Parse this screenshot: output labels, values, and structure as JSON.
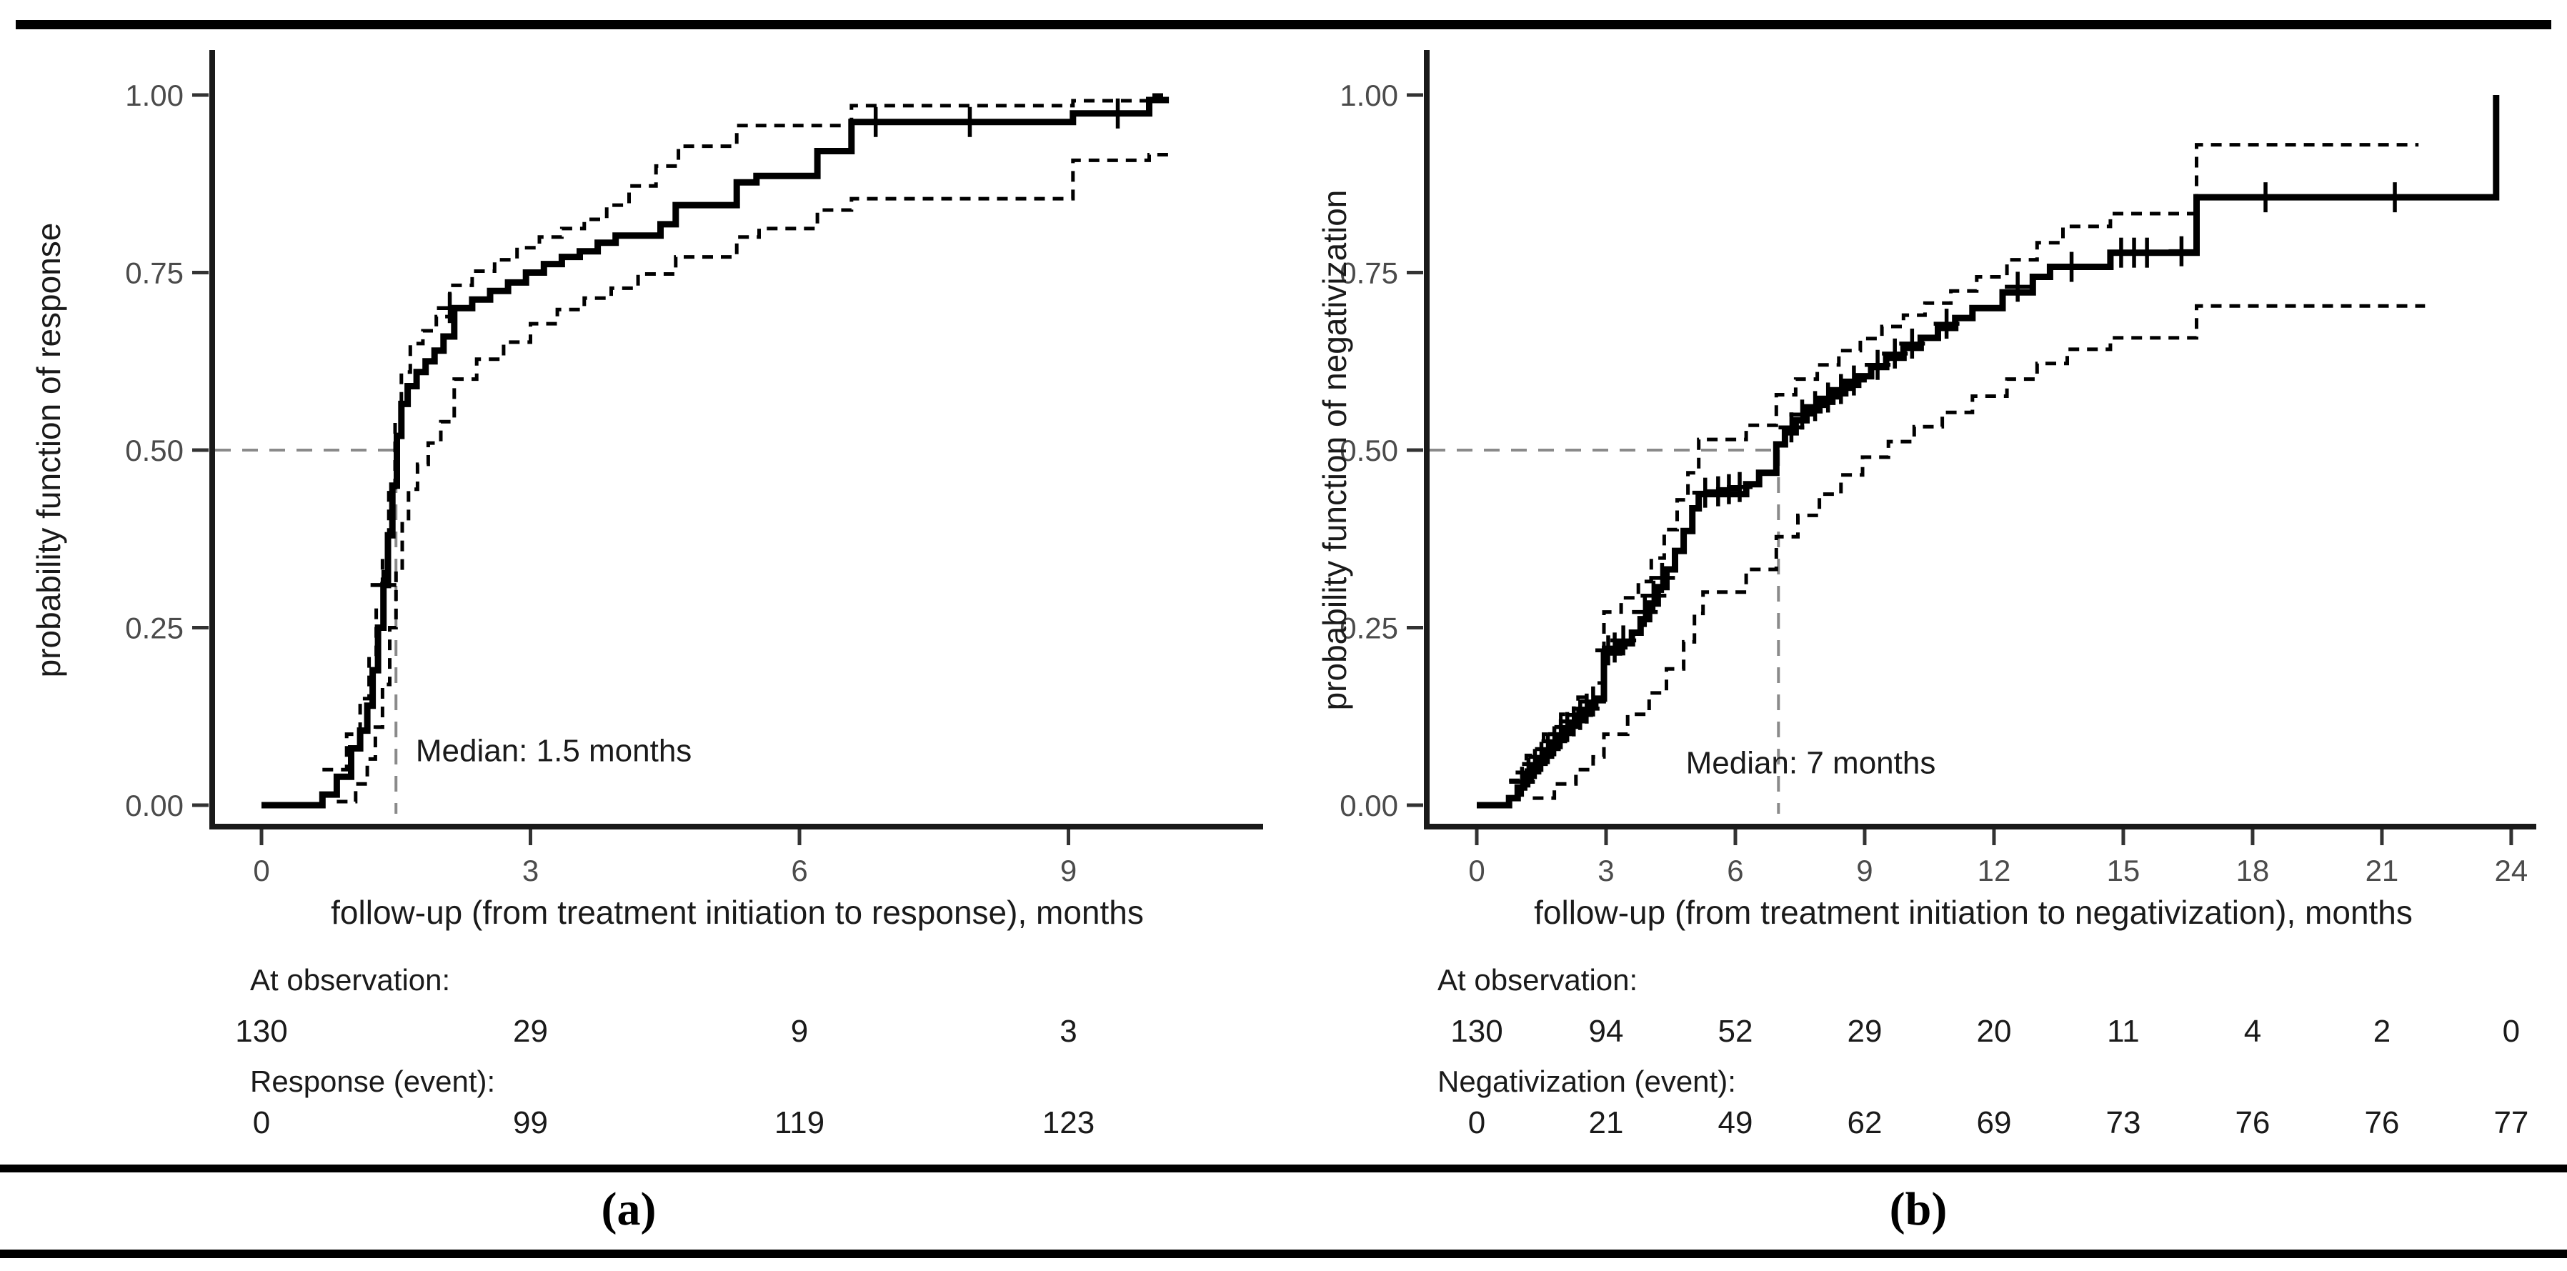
{
  "figure": {
    "caption_a": "(a)",
    "caption_b": "(b)"
  },
  "colors": {
    "curve": "#000000",
    "ci_curve": "#000000",
    "median_line": "#8a8a8a",
    "axis_line": "#1a1a1a",
    "tick_label": "#4b4b4b",
    "text": "#1a1a1a"
  },
  "chart_data": [
    {
      "type": "line",
      "panel": "a",
      "subtype": "kaplan-meier-step",
      "title": "",
      "xlabel": "follow-up (from treatment initiation to response), months",
      "ylabel": "probability function of response",
      "xlim": [
        -0.55,
        11.2
      ],
      "ylim": [
        0,
        1
      ],
      "xticks": [
        0,
        3,
        6,
        9
      ],
      "ytick_labels": [
        "0.00",
        "0.25",
        "0.50",
        "0.75",
        "1.00"
      ],
      "yticks": [
        0,
        0.25,
        0.5,
        0.75,
        1
      ],
      "grid": false,
      "legend": "none",
      "median_annotation": {
        "x": 1.5,
        "y": 0.5,
        "label": "Median: 1.5 months",
        "label_x": 1.72,
        "label_y": 0.062
      },
      "series": [
        {
          "name": "estimate",
          "style": "solid",
          "points": [
            [
              0,
              0
            ],
            [
              0.68,
              0.015
            ],
            [
              0.84,
              0.04
            ],
            [
              1.0,
              0.08
            ],
            [
              1.1,
              0.105
            ],
            [
              1.18,
              0.14
            ],
            [
              1.24,
              0.19
            ],
            [
              1.3,
              0.25
            ],
            [
              1.36,
              0.31
            ],
            [
              1.41,
              0.38
            ],
            [
              1.46,
              0.45
            ],
            [
              1.51,
              0.52
            ],
            [
              1.56,
              0.565
            ],
            [
              1.63,
              0.59
            ],
            [
              1.73,
              0.61
            ],
            [
              1.83,
              0.625
            ],
            [
              1.93,
              0.64
            ],
            [
              2.03,
              0.66
            ],
            [
              2.15,
              0.7
            ],
            [
              2.35,
              0.712
            ],
            [
              2.55,
              0.724
            ],
            [
              2.75,
              0.736
            ],
            [
              2.95,
              0.75
            ],
            [
              3.15,
              0.762
            ],
            [
              3.35,
              0.772
            ],
            [
              3.55,
              0.78
            ],
            [
              3.75,
              0.792
            ],
            [
              3.95,
              0.802
            ],
            [
              4.45,
              0.818
            ],
            [
              4.62,
              0.845
            ],
            [
              5.3,
              0.877
            ],
            [
              5.52,
              0.886
            ],
            [
              6.2,
              0.921
            ],
            [
              6.58,
              0.962
            ],
            [
              9.05,
              0.974
            ],
            [
              9.9,
              0.993
            ],
            [
              10.12,
              0.993
            ]
          ]
        },
        {
          "name": "upper_95ci",
          "style": "dashed",
          "points": [
            [
              0.68,
              0.05
            ],
            [
              0.95,
              0.1
            ],
            [
              1.1,
              0.15
            ],
            [
              1.2,
              0.21
            ],
            [
              1.28,
              0.28
            ],
            [
              1.35,
              0.35
            ],
            [
              1.42,
              0.44
            ],
            [
              1.49,
              0.54
            ],
            [
              1.56,
              0.61
            ],
            [
              1.66,
              0.65
            ],
            [
              1.8,
              0.668
            ],
            [
              1.95,
              0.688
            ],
            [
              2.1,
              0.732
            ],
            [
              2.35,
              0.752
            ],
            [
              2.6,
              0.768
            ],
            [
              2.85,
              0.785
            ],
            [
              3.1,
              0.8
            ],
            [
              3.35,
              0.812
            ],
            [
              3.6,
              0.825
            ],
            [
              3.85,
              0.845
            ],
            [
              4.1,
              0.872
            ],
            [
              4.4,
              0.9
            ],
            [
              4.65,
              0.928
            ],
            [
              5.3,
              0.957
            ],
            [
              6.58,
              0.985
            ],
            [
              9.05,
              0.992
            ],
            [
              9.9,
              1.0
            ],
            [
              10.12,
              1.0
            ]
          ]
        },
        {
          "name": "lower_95ci",
          "style": "dashed",
          "points": [
            [
              0.84,
              0.005
            ],
            [
              1.05,
              0.03
            ],
            [
              1.18,
              0.065
            ],
            [
              1.27,
              0.11
            ],
            [
              1.35,
              0.17
            ],
            [
              1.43,
              0.25
            ],
            [
              1.5,
              0.33
            ],
            [
              1.57,
              0.4
            ],
            [
              1.64,
              0.445
            ],
            [
              1.74,
              0.48
            ],
            [
              1.86,
              0.51
            ],
            [
              2.0,
              0.54
            ],
            [
              2.15,
              0.6
            ],
            [
              2.4,
              0.628
            ],
            [
              2.7,
              0.652
            ],
            [
              3.0,
              0.678
            ],
            [
              3.3,
              0.698
            ],
            [
              3.6,
              0.714
            ],
            [
              3.9,
              0.728
            ],
            [
              4.2,
              0.748
            ],
            [
              4.62,
              0.772
            ],
            [
              5.3,
              0.8
            ],
            [
              5.55,
              0.812
            ],
            [
              6.2,
              0.838
            ],
            [
              6.58,
              0.854
            ],
            [
              9.05,
              0.908
            ],
            [
              9.9,
              0.916
            ],
            [
              10.12,
              0.916
            ]
          ]
        }
      ],
      "censor_marks": [
        [
          1.36,
          0.31
        ],
        [
          2.1,
          0.7
        ],
        [
          6.85,
          0.962
        ],
        [
          7.9,
          0.962
        ],
        [
          9.55,
          0.974
        ]
      ],
      "risk_table": [
        {
          "label": "At observation:",
          "values": [
            "130",
            "29",
            "9",
            "3"
          ]
        },
        {
          "label": "Response (event):",
          "values": [
            "0",
            "99",
            "119",
            "123"
          ]
        }
      ]
    },
    {
      "type": "line",
      "panel": "b",
      "subtype": "kaplan-meier-step",
      "title": "",
      "xlabel": "follow-up (from treatment initiation to negativization), months",
      "ylabel": "probability function of negativization",
      "xlim": [
        -1.2,
        24.6
      ],
      "ylim": [
        0,
        1
      ],
      "xticks": [
        0,
        3,
        6,
        9,
        12,
        15,
        18,
        21,
        24
      ],
      "ytick_labels": [
        "0.00",
        "0.25",
        "0.50",
        "0.75",
        "1.00"
      ],
      "yticks": [
        0,
        0.25,
        0.5,
        0.75,
        1
      ],
      "grid": false,
      "legend": "none",
      "median_annotation": {
        "x": 7,
        "y": 0.5,
        "label": "Median: 7 months",
        "label_x": 4.85,
        "label_y": 0.045
      },
      "series": [
        {
          "name": "estimate",
          "style": "solid",
          "points": [
            [
              0,
              0
            ],
            [
              0.75,
              0.01
            ],
            [
              0.95,
              0.025
            ],
            [
              1.1,
              0.04
            ],
            [
              1.25,
              0.052
            ],
            [
              1.4,
              0.063
            ],
            [
              1.55,
              0.073
            ],
            [
              1.7,
              0.084
            ],
            [
              1.85,
              0.094
            ],
            [
              2.0,
              0.104
            ],
            [
              2.15,
              0.113
            ],
            [
              2.3,
              0.122
            ],
            [
              2.45,
              0.131
            ],
            [
              2.6,
              0.14
            ],
            [
              2.75,
              0.15
            ],
            [
              2.95,
              0.215
            ],
            [
              3.3,
              0.228
            ],
            [
              3.6,
              0.243
            ],
            [
              3.8,
              0.262
            ],
            [
              4.0,
              0.284
            ],
            [
              4.2,
              0.307
            ],
            [
              4.4,
              0.332
            ],
            [
              4.6,
              0.358
            ],
            [
              4.8,
              0.386
            ],
            [
              5.0,
              0.418
            ],
            [
              5.15,
              0.438
            ],
            [
              6.25,
              0.452
            ],
            [
              6.55,
              0.468
            ],
            [
              6.95,
              0.508
            ],
            [
              7.15,
              0.525
            ],
            [
              7.4,
              0.542
            ],
            [
              7.65,
              0.556
            ],
            [
              7.95,
              0.568
            ],
            [
              8.25,
              0.58
            ],
            [
              8.55,
              0.592
            ],
            [
              8.85,
              0.604
            ],
            [
              9.15,
              0.617
            ],
            [
              9.5,
              0.63
            ],
            [
              9.9,
              0.644
            ],
            [
              10.3,
              0.658
            ],
            [
              10.7,
              0.672
            ],
            [
              11.1,
              0.686
            ],
            [
              11.5,
              0.7
            ],
            [
              12.2,
              0.722
            ],
            [
              12.9,
              0.744
            ],
            [
              13.3,
              0.758
            ],
            [
              14.7,
              0.778
            ],
            [
              16.7,
              0.856
            ],
            [
              23.65,
              1.0
            ]
          ]
        },
        {
          "name": "upper_95ci",
          "style": "dashed",
          "points": [
            [
              0.75,
              0.035
            ],
            [
              1.15,
              0.07
            ],
            [
              1.55,
              0.1
            ],
            [
              1.95,
              0.128
            ],
            [
              2.35,
              0.152
            ],
            [
              2.7,
              0.172
            ],
            [
              2.95,
              0.272
            ],
            [
              3.35,
              0.292
            ],
            [
              3.75,
              0.315
            ],
            [
              4.05,
              0.348
            ],
            [
              4.35,
              0.388
            ],
            [
              4.65,
              0.43
            ],
            [
              4.9,
              0.468
            ],
            [
              5.15,
              0.515
            ],
            [
              6.25,
              0.535
            ],
            [
              6.95,
              0.578
            ],
            [
              7.4,
              0.6
            ],
            [
              7.9,
              0.62
            ],
            [
              8.4,
              0.64
            ],
            [
              8.9,
              0.657
            ],
            [
              9.4,
              0.674
            ],
            [
              9.9,
              0.69
            ],
            [
              10.4,
              0.707
            ],
            [
              11.0,
              0.724
            ],
            [
              11.6,
              0.744
            ],
            [
              12.3,
              0.768
            ],
            [
              13.0,
              0.792
            ],
            [
              13.6,
              0.815
            ],
            [
              14.7,
              0.833
            ],
            [
              16.7,
              0.93
            ],
            [
              21.85,
              0.93
            ]
          ]
        },
        {
          "name": "lower_95ci",
          "style": "dashed",
          "points": [
            [
              1.3,
              0.01
            ],
            [
              1.8,
              0.03
            ],
            [
              2.3,
              0.05
            ],
            [
              2.7,
              0.068
            ],
            [
              2.95,
              0.1
            ],
            [
              3.5,
              0.128
            ],
            [
              4.0,
              0.158
            ],
            [
              4.4,
              0.192
            ],
            [
              4.8,
              0.23
            ],
            [
              5.05,
              0.27
            ],
            [
              5.25,
              0.3
            ],
            [
              6.25,
              0.332
            ],
            [
              6.95,
              0.378
            ],
            [
              7.45,
              0.408
            ],
            [
              7.95,
              0.438
            ],
            [
              8.45,
              0.465
            ],
            [
              8.95,
              0.49
            ],
            [
              9.55,
              0.512
            ],
            [
              10.15,
              0.533
            ],
            [
              10.8,
              0.553
            ],
            [
              11.5,
              0.576
            ],
            [
              12.3,
              0.6
            ],
            [
              13.0,
              0.622
            ],
            [
              13.7,
              0.642
            ],
            [
              14.7,
              0.658
            ],
            [
              16.7,
              0.703
            ],
            [
              22.0,
              0.703
            ]
          ]
        }
      ],
      "censor_marks": [
        [
          1.05,
          0.033
        ],
        [
          1.2,
          0.046
        ],
        [
          1.35,
          0.058
        ],
        [
          1.5,
          0.068
        ],
        [
          1.65,
          0.079
        ],
        [
          1.8,
          0.09
        ],
        [
          1.95,
          0.1
        ],
        [
          2.1,
          0.11
        ],
        [
          2.25,
          0.118
        ],
        [
          2.4,
          0.127
        ],
        [
          2.55,
          0.136
        ],
        [
          2.7,
          0.146
        ],
        [
          3.05,
          0.218
        ],
        [
          3.2,
          0.222
        ],
        [
          3.4,
          0.232
        ],
        [
          3.9,
          0.272
        ],
        [
          4.1,
          0.295
        ],
        [
          4.3,
          0.32
        ],
        [
          5.3,
          0.44
        ],
        [
          5.6,
          0.442
        ],
        [
          5.85,
          0.445
        ],
        [
          6.1,
          0.448
        ],
        [
          7.3,
          0.532
        ],
        [
          7.55,
          0.55
        ],
        [
          7.85,
          0.562
        ],
        [
          8.15,
          0.574
        ],
        [
          8.45,
          0.586
        ],
        [
          8.75,
          0.598
        ],
        [
          9.3,
          0.62
        ],
        [
          9.7,
          0.636
        ],
        [
          10.1,
          0.65
        ],
        [
          10.9,
          0.678
        ],
        [
          12.55,
          0.73
        ],
        [
          13.8,
          0.758
        ],
        [
          14.95,
          0.778
        ],
        [
          15.25,
          0.778
        ],
        [
          15.55,
          0.778
        ],
        [
          16.35,
          0.78
        ],
        [
          18.3,
          0.856
        ],
        [
          21.3,
          0.856
        ]
      ],
      "risk_table": [
        {
          "label": "At observation:",
          "values": [
            "130",
            "94",
            "52",
            "29",
            "20",
            "11",
            "4",
            "2",
            "0"
          ]
        },
        {
          "label": "Negativization (event):",
          "values": [
            "0",
            "21",
            "49",
            "62",
            "69",
            "73",
            "76",
            "76",
            "77"
          ]
        }
      ]
    }
  ]
}
